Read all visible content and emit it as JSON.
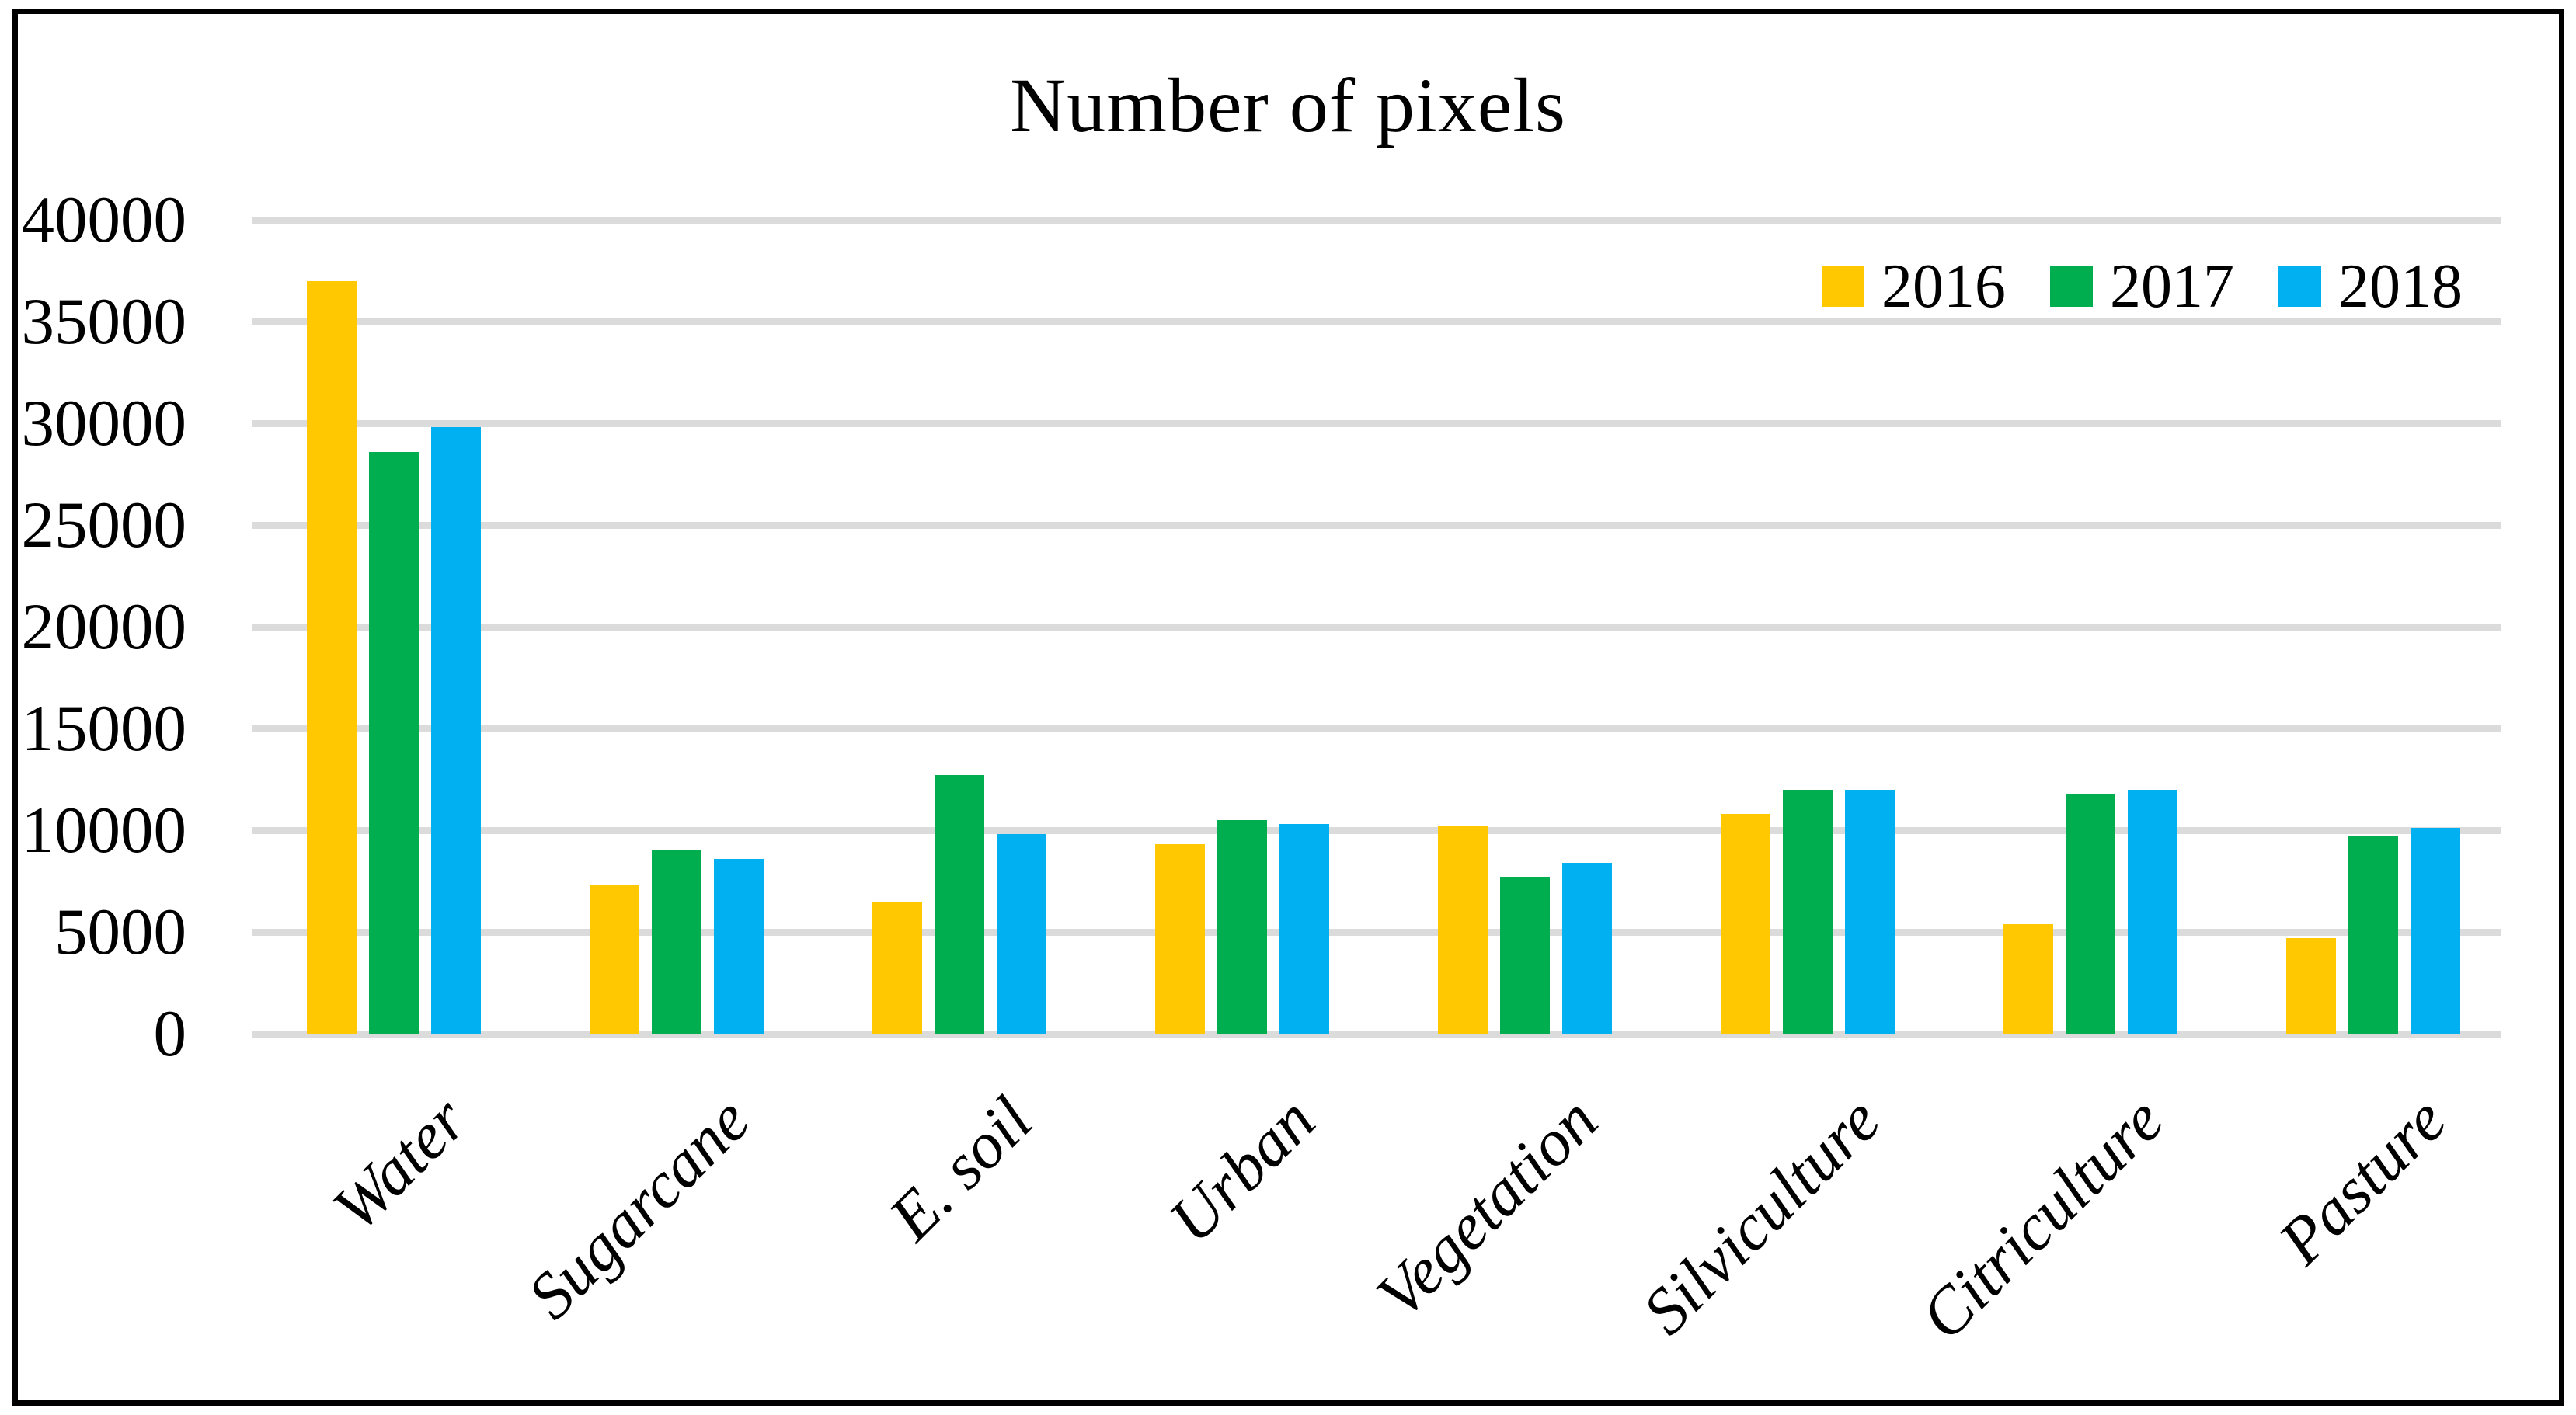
{
  "figure": {
    "title": "Number of pixels"
  },
  "chart_data": {
    "type": "bar",
    "title": "Number of pixels",
    "categories": [
      "Water",
      "Sugarcane",
      "E. soil",
      "Urban",
      "Vegetation",
      "Silviculture",
      "Citriculture",
      "Pasture"
    ],
    "series": [
      {
        "name": "2016",
        "color": "#FFC800",
        "values": [
          37000,
          7300,
          6500,
          9300,
          10200,
          10800,
          5400,
          4700
        ]
      },
      {
        "name": "2017",
        "color": "#00AD4F",
        "values": [
          28600,
          9000,
          12700,
          10500,
          7700,
          12000,
          11800,
          9700
        ]
      },
      {
        "name": "2018",
        "color": "#00B0F0",
        "values": [
          29800,
          8600,
          9800,
          10300,
          8400,
          12000,
          12000,
          10100
        ]
      }
    ],
    "xlabel": "",
    "ylabel": "",
    "ylim": [
      0,
      40000
    ],
    "ytick_step": 5000,
    "yticks": [
      40000,
      35000,
      30000,
      25000,
      20000,
      15000,
      10000,
      5000,
      0
    ],
    "grid": true,
    "gridline_color": "#dbdbdb",
    "legend_position": "top-right",
    "category_label_rotation_deg": 45,
    "category_label_style": "italic"
  }
}
